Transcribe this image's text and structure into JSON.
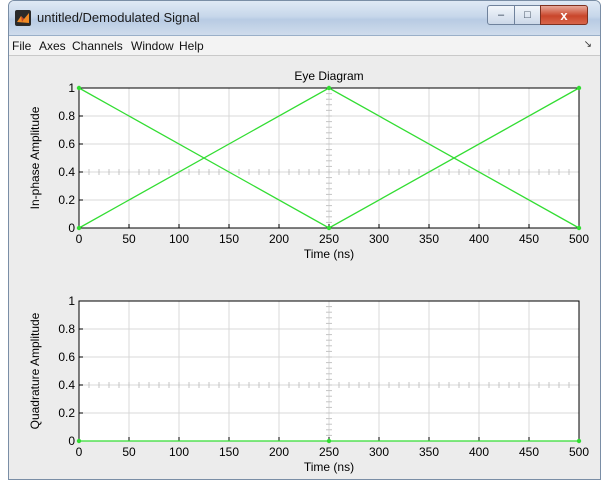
{
  "window": {
    "title": "untitled/Demodulated Signal",
    "controls": {
      "minimize": "–",
      "maximize": "□",
      "close": "x"
    }
  },
  "menubar": {
    "items": [
      "File",
      "Axes",
      "Channels",
      "Window",
      "Help"
    ],
    "dock_icon": "dock-arrow-icon"
  },
  "colors": {
    "trace": "#33dd33",
    "grid": "#d9d9d9",
    "window_bg": "#ececec"
  },
  "chart_data": [
    {
      "type": "line",
      "title": "Eye Diagram",
      "xlabel": "Time (ns)",
      "ylabel": "In-phase Amplitude",
      "xlim": [
        0,
        500
      ],
      "ylim": [
        0,
        1
      ],
      "xticks": [
        0,
        50,
        100,
        150,
        200,
        250,
        300,
        350,
        400,
        450,
        500
      ],
      "yticks": [
        0,
        0.2,
        0.4,
        0.6,
        0.8,
        1
      ],
      "grid": true,
      "traces": [
        {
          "x": [
            0,
            250,
            500
          ],
          "y": [
            1,
            0,
            1
          ]
        },
        {
          "x": [
            0,
            250,
            500
          ],
          "y": [
            0,
            1,
            0
          ]
        }
      ]
    },
    {
      "type": "line",
      "title": "",
      "xlabel": "Time (ns)",
      "ylabel": "Quadrature Amplitude",
      "xlim": [
        0,
        500
      ],
      "ylim": [
        0,
        1
      ],
      "xticks": [
        0,
        50,
        100,
        150,
        200,
        250,
        300,
        350,
        400,
        450,
        500
      ],
      "yticks": [
        0,
        0.2,
        0.4,
        0.6,
        0.8,
        1
      ],
      "grid": true,
      "traces": [
        {
          "x": [
            0,
            250,
            500
          ],
          "y": [
            0,
            0,
            0
          ]
        }
      ]
    }
  ]
}
